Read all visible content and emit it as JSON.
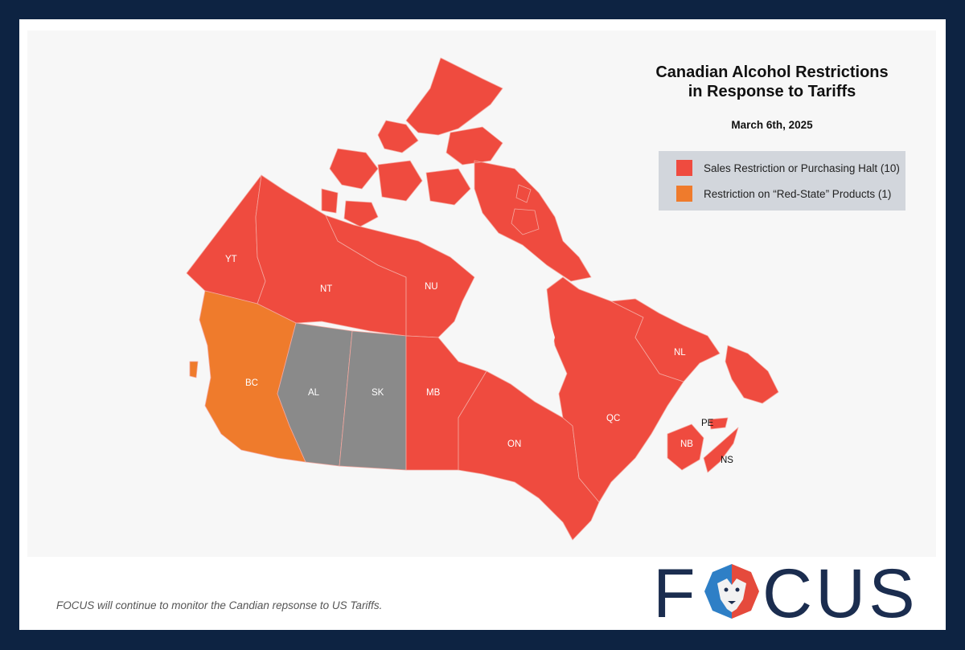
{
  "title_line1": "Canadian Alcohol Restrictions",
  "title_line2": "in Response to Tariffs",
  "date": "March 6th, 2025",
  "legend": [
    {
      "label": "Sales Restriction or Purchasing Halt (10)",
      "color": "#ef4b3f"
    },
    {
      "label": "Restriction on “Red-State” Products (1)",
      "color": "#ef7b2c"
    }
  ],
  "colors": {
    "restricted": "#ef4b3f",
    "red_state": "#ef7b2c",
    "no_restriction": "#8a8a8a",
    "frame": "#0d2342",
    "brand": "#1b2d4f"
  },
  "provinces": {
    "YT": {
      "label": "YT",
      "status": "restricted"
    },
    "NT": {
      "label": "NT",
      "status": "restricted"
    },
    "NU": {
      "label": "NU",
      "status": "restricted"
    },
    "BC": {
      "label": "BC",
      "status": "red_state"
    },
    "AL": {
      "label": "AL",
      "status": "none"
    },
    "SK": {
      "label": "SK",
      "status": "none"
    },
    "MB": {
      "label": "MB",
      "status": "restricted"
    },
    "ON": {
      "label": "ON",
      "status": "restricted"
    },
    "QC": {
      "label": "QC",
      "status": "restricted"
    },
    "NL": {
      "label": "NL",
      "status": "restricted"
    },
    "NB": {
      "label": "NB",
      "status": "restricted"
    },
    "PE": {
      "label": "PE",
      "status": "restricted"
    },
    "NS": {
      "label": "NS",
      "status": "restricted"
    }
  },
  "footnote": "FOCUS will continue to monitor the Candian repsonse to US Tariffs.",
  "logo": {
    "prefix": "F",
    "suffix": "CUS",
    "icon": "lion-head-icon"
  }
}
